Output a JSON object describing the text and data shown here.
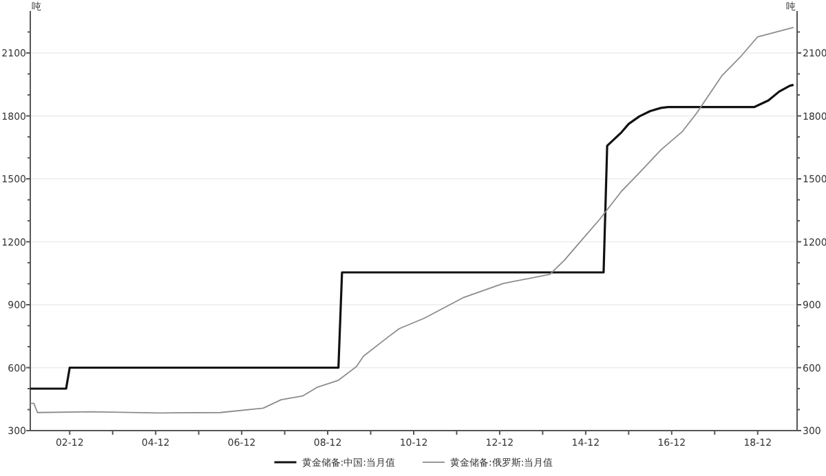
{
  "chart_data": {
    "type": "line",
    "ylabel": "吨",
    "y2label": "吨",
    "xlim": [
      "2002-01",
      "2019-11"
    ],
    "xticks": [
      {
        "value": "2002-12",
        "label": "02-12"
      },
      {
        "value": "2003-12",
        "label": null
      },
      {
        "value": "2004-12",
        "label": "04-12"
      },
      {
        "value": "2005-12",
        "label": null
      },
      {
        "value": "2006-12",
        "label": "06-12"
      },
      {
        "value": "2007-12",
        "label": null
      },
      {
        "value": "2008-12",
        "label": "08-12"
      },
      {
        "value": "2009-12",
        "label": null
      },
      {
        "value": "2010-12",
        "label": "10-12"
      },
      {
        "value": "2011-12",
        "label": null
      },
      {
        "value": "2012-12",
        "label": "12-12"
      },
      {
        "value": "2013-12",
        "label": null
      },
      {
        "value": "2014-12",
        "label": "14-12"
      },
      {
        "value": "2015-12",
        "label": null
      },
      {
        "value": "2016-12",
        "label": "16-12"
      },
      {
        "value": "2017-12",
        "label": null
      },
      {
        "value": "2018-12",
        "label": "18-12"
      }
    ],
    "ylim": [
      300,
      2300
    ],
    "yticks": [
      300,
      {
        "value": 400,
        "label": null
      },
      {
        "value": 500,
        "label": null
      },
      600,
      {
        "value": 700,
        "label": null
      },
      {
        "value": 800,
        "label": null
      },
      900,
      {
        "value": 1000,
        "label": null
      },
      {
        "value": 1100,
        "label": null
      },
      1200,
      {
        "value": 1300,
        "label": null
      },
      {
        "value": 1400,
        "label": null
      },
      1500,
      {
        "value": 1600,
        "label": null
      },
      {
        "value": 1700,
        "label": null
      },
      1800,
      {
        "value": 1900,
        "label": null
      },
      {
        "value": 2000,
        "label": null
      },
      2100,
      {
        "value": 2200,
        "label": null
      }
    ],
    "y2lim": [
      300,
      2300
    ],
    "y2ticks": [
      300,
      {
        "value": 400,
        "label": null
      },
      {
        "value": 500,
        "label": null
      },
      600,
      {
        "value": 700,
        "label": null
      },
      {
        "value": 800,
        "label": null
      },
      900,
      {
        "value": 1000,
        "label": null
      },
      {
        "value": 1100,
        "label": null
      },
      1200,
      {
        "value": 1300,
        "label": null
      },
      {
        "value": 1400,
        "label": null
      },
      1500,
      {
        "value": 1600,
        "label": null
      },
      {
        "value": 1700,
        "label": null
      },
      1800,
      {
        "value": 1900,
        "label": null
      },
      {
        "value": 2000,
        "label": null
      },
      2100,
      {
        "value": 2200,
        "label": null
      }
    ],
    "grid": "y",
    "legend": "bottom",
    "marker": "none",
    "line_style": "solid",
    "series": [
      {
        "name": "黄金储备:中国:当月值",
        "color": "#111111",
        "x": [
          "2002-01",
          "2002-11",
          "2002-12",
          "2009-03",
          "2009-04",
          "2015-05",
          "2015-06",
          "2015-08",
          "2015-10",
          "2015-12",
          "2016-03",
          "2016-06",
          "2016-09",
          "2016-11",
          "2018-11",
          "2019-03",
          "2019-06",
          "2019-09",
          "2019-10"
        ],
        "values": [
          500,
          500,
          600,
          600,
          1054,
          1054,
          1658,
          1690,
          1722,
          1762,
          1798,
          1823,
          1838,
          1842,
          1842,
          1874,
          1916,
          1944,
          1948
        ]
      },
      {
        "name": "黄金储备:俄罗斯:当月值",
        "color": "#8c8c8c",
        "x": [
          "2002-01",
          "2002-02",
          "2002-03",
          "2003-06",
          "2005-01",
          "2006-06",
          "2007-06",
          "2007-11",
          "2008-05",
          "2008-09",
          "2009-03",
          "2009-08",
          "2009-10",
          "2010-05",
          "2010-08",
          "2011-03",
          "2012-02",
          "2013-01",
          "2014-02",
          "2014-06",
          "2014-11",
          "2015-04",
          "2015-10",
          "2016-03",
          "2016-09",
          "2017-03",
          "2017-07",
          "2018-02",
          "2018-07",
          "2018-12",
          "2019-10"
        ],
        "values": [
          430,
          430,
          386,
          390,
          384,
          386,
          407,
          447,
          465,
          506,
          540,
          605,
          655,
          748,
          786,
          836,
          935,
          1001,
          1045,
          1111,
          1210,
          1309,
          1441,
          1529,
          1638,
          1726,
          1814,
          1991,
          2078,
          2177,
          2222
        ]
      }
    ]
  }
}
